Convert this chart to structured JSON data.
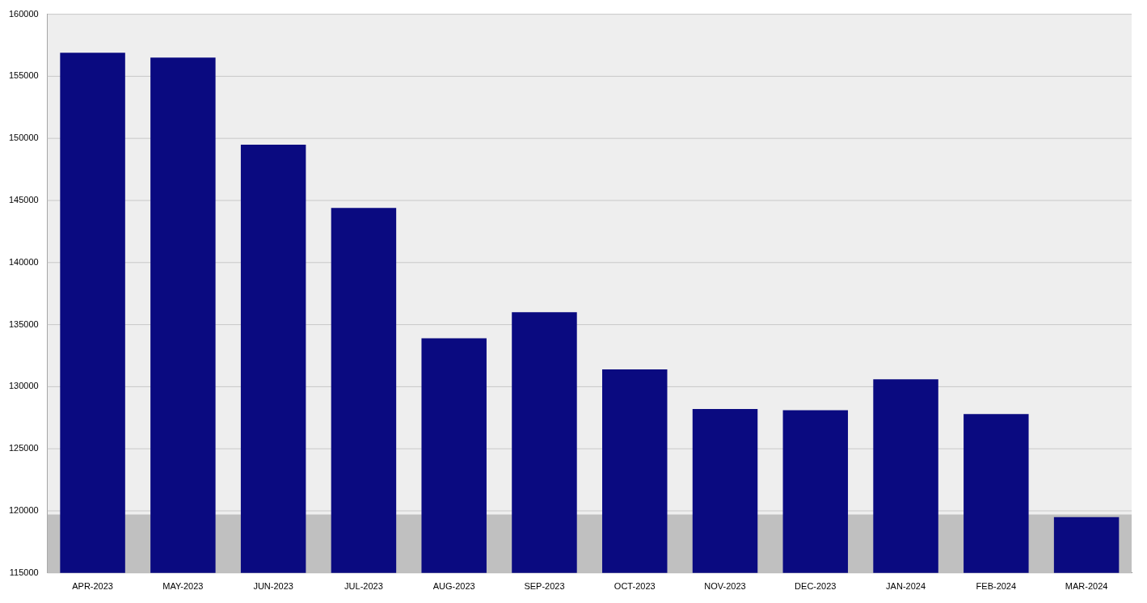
{
  "chart_data": {
    "type": "bar",
    "categories": [
      "APR-2023",
      "MAY-2023",
      "JUN-2023",
      "JUL-2023",
      "AUG-2023",
      "SEP-2023",
      "OCT-2023",
      "NOV-2023",
      "DEC-2023",
      "JAN-2024",
      "FEB-2024",
      "MAR-2024"
    ],
    "values": [
      156900,
      156500,
      149500,
      144400,
      133900,
      136000,
      131400,
      128200,
      128100,
      130600,
      127800,
      119500
    ],
    "color": "#0a0a80",
    "ylim": [
      115000,
      160000
    ],
    "yticks": [
      115000,
      120000,
      125000,
      130000,
      135000,
      140000,
      145000,
      150000,
      155000,
      160000
    ],
    "grid": "y",
    "bands": [
      {
        "axis": "y",
        "from": 115000,
        "to": 119700,
        "color": "#b4b4b4"
      }
    ]
  }
}
